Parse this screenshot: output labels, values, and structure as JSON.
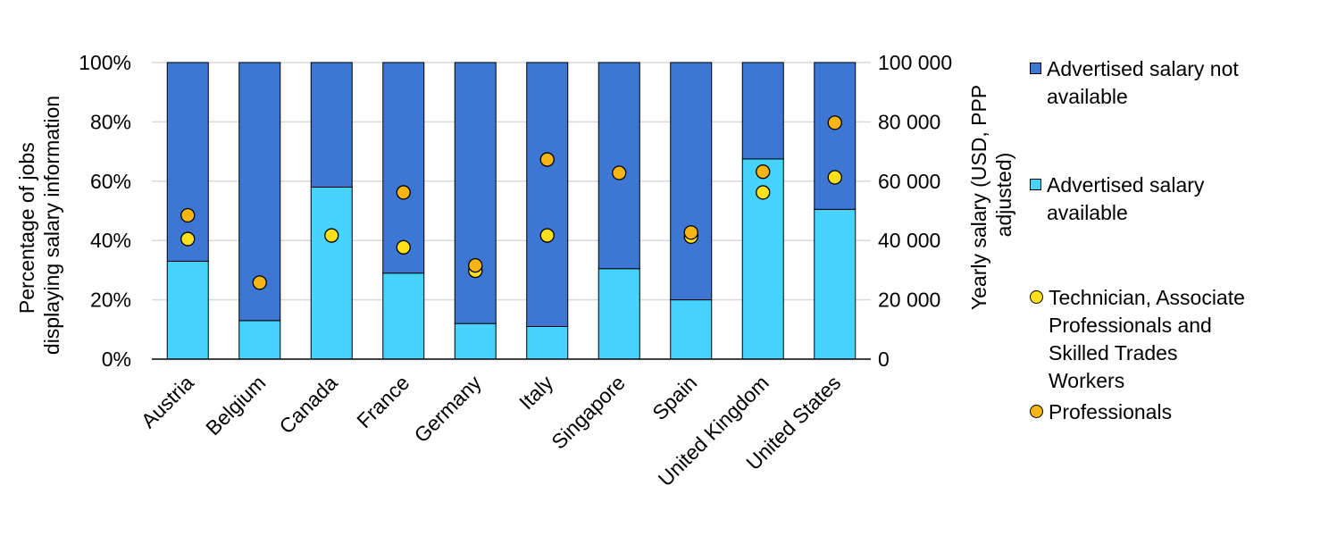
{
  "chart_data": {
    "type": "bar",
    "stacked": true,
    "categories": [
      "Austria",
      "Belgium",
      "Canada",
      "France",
      "Germany",
      "Italy",
      "Singapore",
      "Spain",
      "United Kingdom",
      "United States"
    ],
    "ylabel": "Percentage of jobs displaying salary information",
    "y2label": "Yearly salary (USD, PPP adjusted)",
    "ylim": [
      0,
      100
    ],
    "y2lim": [
      0,
      100000
    ],
    "yticks": [
      "0%",
      "20%",
      "40%",
      "60%",
      "80%",
      "100%"
    ],
    "y2ticks": [
      "0",
      "20 000",
      "40 000",
      "60 000",
      "80 000",
      "100 000"
    ],
    "grid": true,
    "legend_position": "right",
    "series": [
      {
        "name": "Advertised salary available",
        "type": "bar",
        "axis": "left",
        "color": "#47D3FF",
        "values": [
          33,
          13,
          58,
          29,
          12,
          11,
          30.5,
          20,
          67.5,
          50.5
        ]
      },
      {
        "name": "Advertised salary not available",
        "type": "bar",
        "axis": "left",
        "color": "#3D77D3",
        "values": [
          67,
          87,
          42,
          71,
          88,
          89,
          69.5,
          80,
          32.5,
          49.5
        ]
      },
      {
        "name": "Technician, Associate Professionals and Skilled Trades Workers",
        "type": "scatter",
        "axis": "right",
        "color": "#FFE01B",
        "values": [
          40500,
          null,
          41700,
          37700,
          29800,
          41700,
          null,
          41300,
          56200,
          61300
        ]
      },
      {
        "name": "Professionals",
        "type": "scatter",
        "axis": "right",
        "color": "#F5B515",
        "values": [
          48500,
          25800,
          null,
          56200,
          31600,
          67300,
          62800,
          42700,
          63200,
          79700
        ]
      }
    ]
  },
  "legend": [
    {
      "label": "Advertised salary not\navailable",
      "color": "#3D77D3",
      "shape": "square"
    },
    {
      "label": "Advertised salary\navailable",
      "color": "#47D3FF",
      "shape": "square"
    },
    {
      "label": "Technician, Associate\nProfessionals and\nSkilled Trades\nWorkers",
      "color": "#FFE01B",
      "shape": "circle"
    },
    {
      "label": "Professionals",
      "color": "#F5B515",
      "shape": "circle"
    }
  ]
}
